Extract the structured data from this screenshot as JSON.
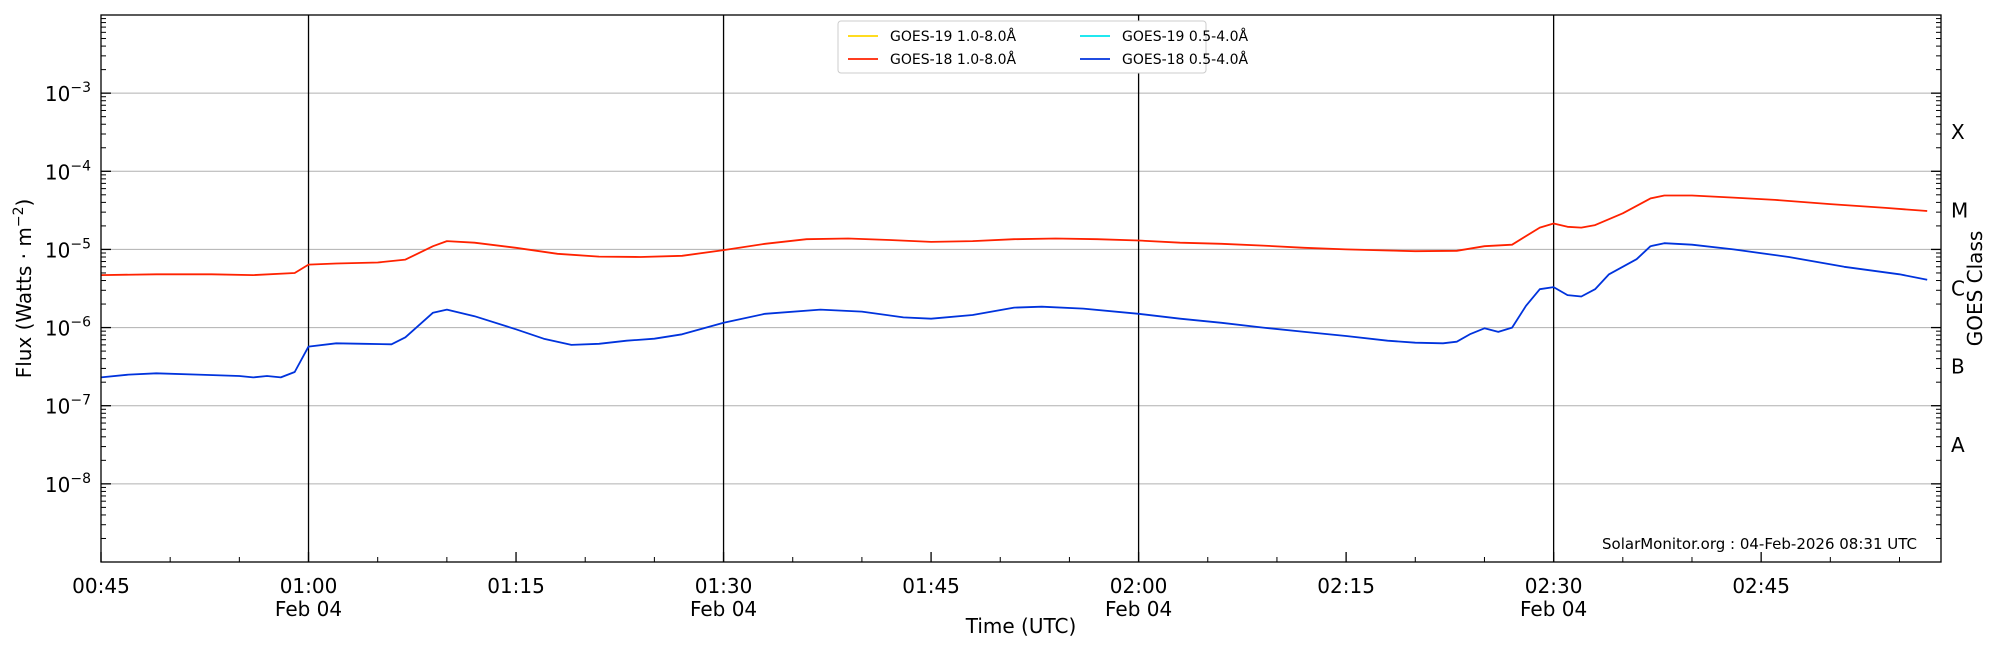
{
  "chart_data": {
    "type": "line",
    "ylabel": "Flux (Watts · m",
    "ylabel_sup": "−2",
    "ylabel_close": ")",
    "xlabel": "Time (UTC)",
    "right_label": "GOES Class",
    "y_scale": "log",
    "ylim": [
      1e-09,
      0.01
    ],
    "xlim": [
      "2026-02-04T00:45",
      "2026-02-04T02:58"
    ],
    "grid": "horizontal at decades",
    "vertical_lines_at": [
      "01:00",
      "01:30",
      "02:00",
      "02:30"
    ],
    "y_ticks": [
      {
        "value": 1e-08,
        "base": "10",
        "exp": "−8"
      },
      {
        "value": 1e-07,
        "base": "10",
        "exp": "−7"
      },
      {
        "value": 1e-06,
        "base": "10",
        "exp": "−6"
      },
      {
        "value": 1e-05,
        "base": "10",
        "exp": "−5"
      },
      {
        "value": 0.0001,
        "base": "10",
        "exp": "−4"
      },
      {
        "value": 0.001,
        "base": "10",
        "exp": "−3"
      }
    ],
    "x_ticks": [
      {
        "time": "00:45",
        "label": "00:45",
        "sub": ""
      },
      {
        "time": "01:00",
        "label": "01:00",
        "sub": "Feb 04"
      },
      {
        "time": "01:15",
        "label": "01:15",
        "sub": ""
      },
      {
        "time": "01:30",
        "label": "01:30",
        "sub": "Feb 04"
      },
      {
        "time": "01:45",
        "label": "01:45",
        "sub": ""
      },
      {
        "time": "02:00",
        "label": "02:00",
        "sub": "Feb 04"
      },
      {
        "time": "02:15",
        "label": "02:15",
        "sub": ""
      },
      {
        "time": "02:30",
        "label": "02:30",
        "sub": "Feb 04"
      },
      {
        "time": "02:45",
        "label": "02:45",
        "sub": ""
      }
    ],
    "goes_classes": [
      {
        "label": "A",
        "value": 3.16e-08
      },
      {
        "label": "B",
        "value": 3.16e-07
      },
      {
        "label": "C",
        "value": 3.16e-06
      },
      {
        "label": "M",
        "value": 3.16e-05
      },
      {
        "label": "X",
        "value": 0.000316
      }
    ],
    "legend": {
      "placement": "top-center",
      "entries": [
        {
          "name": "GOES-19 1.0-8.0Å",
          "color": "#ffd700"
        },
        {
          "name": "GOES-19 0.5-4.0Å",
          "color": "#00e5ee"
        },
        {
          "name": "GOES-18 1.0-8.0Å",
          "color": "#ff2200"
        },
        {
          "name": "GOES-18 0.5-4.0Å",
          "color": "#0033dd"
        }
      ]
    },
    "series": [
      {
        "name": "GOES-18 1.0-8.0Å",
        "color": "#ff2200",
        "points": [
          [
            "00:45",
            4.7e-06
          ],
          [
            "00:49",
            4.8e-06
          ],
          [
            "00:53",
            4.8e-06
          ],
          [
            "00:56",
            4.7e-06
          ],
          [
            "00:59",
            5e-06
          ],
          [
            "01:00",
            6.4e-06
          ],
          [
            "01:02",
            6.6e-06
          ],
          [
            "01:05",
            6.8e-06
          ],
          [
            "01:07",
            7.4e-06
          ],
          [
            "01:09",
            1.1e-05
          ],
          [
            "01:10",
            1.28e-05
          ],
          [
            "01:12",
            1.22e-05
          ],
          [
            "01:15",
            1.05e-05
          ],
          [
            "01:18",
            8.8e-06
          ],
          [
            "01:21",
            8.1e-06
          ],
          [
            "01:24",
            8e-06
          ],
          [
            "01:27",
            8.3e-06
          ],
          [
            "01:30",
            9.8e-06
          ],
          [
            "01:33",
            1.18e-05
          ],
          [
            "01:36",
            1.35e-05
          ],
          [
            "01:39",
            1.38e-05
          ],
          [
            "01:42",
            1.32e-05
          ],
          [
            "01:45",
            1.25e-05
          ],
          [
            "01:48",
            1.28e-05
          ],
          [
            "01:51",
            1.35e-05
          ],
          [
            "01:54",
            1.38e-05
          ],
          [
            "01:57",
            1.35e-05
          ],
          [
            "02:00",
            1.3e-05
          ],
          [
            "02:03",
            1.22e-05
          ],
          [
            "02:06",
            1.18e-05
          ],
          [
            "02:09",
            1.12e-05
          ],
          [
            "02:12",
            1.05e-05
          ],
          [
            "02:15",
            1e-05
          ],
          [
            "02:18",
            9.7e-06
          ],
          [
            "02:20",
            9.5e-06
          ],
          [
            "02:23",
            9.6e-06
          ],
          [
            "02:25",
            1.1e-05
          ],
          [
            "02:27",
            1.15e-05
          ],
          [
            "02:29",
            1.9e-05
          ],
          [
            "02:30",
            2.15e-05
          ],
          [
            "02:31",
            1.95e-05
          ],
          [
            "02:32",
            1.9e-05
          ],
          [
            "02:33",
            2.05e-05
          ],
          [
            "02:35",
            2.9e-05
          ],
          [
            "02:37",
            4.5e-05
          ],
          [
            "02:38",
            4.9e-05
          ],
          [
            "02:40",
            4.9e-05
          ],
          [
            "02:43",
            4.6e-05
          ],
          [
            "02:46",
            4.3e-05
          ],
          [
            "02:50",
            3.8e-05
          ],
          [
            "02:54",
            3.4e-05
          ],
          [
            "02:57",
            3.1e-05
          ]
        ]
      },
      {
        "name": "GOES-18 0.5-4.0Å",
        "color": "#0033dd",
        "points": [
          [
            "00:45",
            2.3e-07
          ],
          [
            "00:47",
            2.5e-07
          ],
          [
            "00:49",
            2.6e-07
          ],
          [
            "00:52",
            2.5e-07
          ],
          [
            "00:55",
            2.4e-07
          ],
          [
            "00:56",
            2.3e-07
          ],
          [
            "00:57",
            2.4e-07
          ],
          [
            "00:58",
            2.3e-07
          ],
          [
            "00:59",
            2.7e-07
          ],
          [
            "01:00",
            5.7e-07
          ],
          [
            "01:02",
            6.3e-07
          ],
          [
            "01:04",
            6.2e-07
          ],
          [
            "01:06",
            6.1e-07
          ],
          [
            "01:07",
            7.5e-07
          ],
          [
            "01:09",
            1.55e-06
          ],
          [
            "01:10",
            1.7e-06
          ],
          [
            "01:12",
            1.4e-06
          ],
          [
            "01:15",
            9.5e-07
          ],
          [
            "01:17",
            7.2e-07
          ],
          [
            "01:19",
            6e-07
          ],
          [
            "01:21",
            6.2e-07
          ],
          [
            "01:23",
            6.8e-07
          ],
          [
            "01:25",
            7.2e-07
          ],
          [
            "01:27",
            8.2e-07
          ],
          [
            "01:30",
            1.15e-06
          ],
          [
            "01:33",
            1.5e-06
          ],
          [
            "01:37",
            1.7e-06
          ],
          [
            "01:40",
            1.6e-06
          ],
          [
            "01:43",
            1.35e-06
          ],
          [
            "01:45",
            1.3e-06
          ],
          [
            "01:48",
            1.45e-06
          ],
          [
            "01:51",
            1.8e-06
          ],
          [
            "01:53",
            1.85e-06
          ],
          [
            "01:56",
            1.75e-06
          ],
          [
            "02:00",
            1.5e-06
          ],
          [
            "02:03",
            1.3e-06
          ],
          [
            "02:06",
            1.15e-06
          ],
          [
            "02:09",
            1e-06
          ],
          [
            "02:12",
            8.8e-07
          ],
          [
            "02:15",
            7.8e-07
          ],
          [
            "02:18",
            6.8e-07
          ],
          [
            "02:20",
            6.4e-07
          ],
          [
            "02:22",
            6.3e-07
          ],
          [
            "02:23",
            6.6e-07
          ],
          [
            "02:24",
            8.3e-07
          ],
          [
            "02:25",
            9.8e-07
          ],
          [
            "02:26",
            8.8e-07
          ],
          [
            "02:27",
            1e-06
          ],
          [
            "02:28",
            1.9e-06
          ],
          [
            "02:29",
            3.1e-06
          ],
          [
            "02:30",
            3.3e-06
          ],
          [
            "02:31",
            2.6e-06
          ],
          [
            "02:32",
            2.5e-06
          ],
          [
            "02:33",
            3.1e-06
          ],
          [
            "02:34",
            4.8e-06
          ],
          [
            "02:36",
            7.5e-06
          ],
          [
            "02:37",
            1.1e-05
          ],
          [
            "02:38",
            1.2e-05
          ],
          [
            "02:40",
            1.15e-05
          ],
          [
            "02:43",
            1e-05
          ],
          [
            "02:47",
            8e-06
          ],
          [
            "02:51",
            6e-06
          ],
          [
            "02:55",
            4.8e-06
          ],
          [
            "02:57",
            4.1e-06
          ]
        ]
      }
    ],
    "annotation": "SolarMonitor.org : 04-Feb-2026 08:31 UTC"
  }
}
